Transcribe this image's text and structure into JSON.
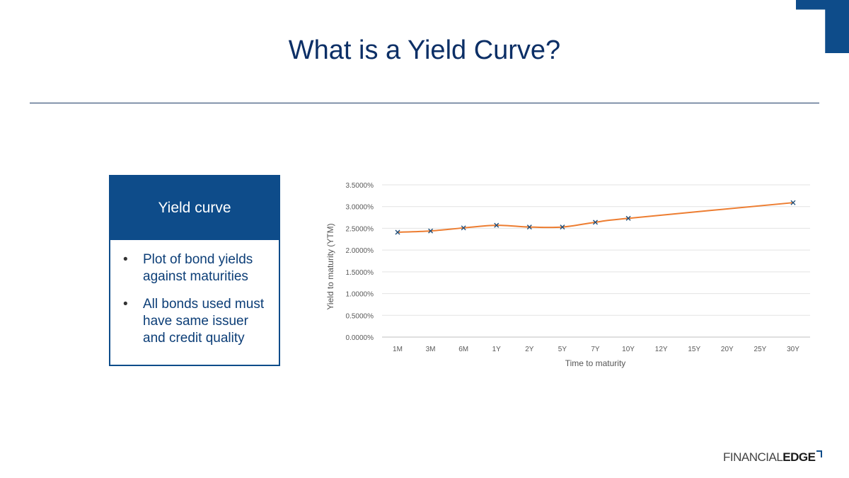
{
  "page": {
    "title": "What is a Yield Curve?"
  },
  "card": {
    "header": "Yield curve",
    "bullets": [
      "Plot of bond yields against maturities",
      "All bonds used must have same issuer and credit quality"
    ]
  },
  "logo": {
    "part1": "FINANCIAL",
    "part2": "EDGE"
  },
  "colors": {
    "accent": "#0e4c8a",
    "line": "#ed7d31",
    "marker": "#1f4e79"
  },
  "chart_data": {
    "type": "line",
    "title": "",
    "xlabel": "Time to maturity",
    "ylabel": "Yield to maturity (YTM)",
    "categories": [
      "1M",
      "3M",
      "6M",
      "1Y",
      "2Y",
      "5Y",
      "7Y",
      "10Y",
      "12Y",
      "15Y",
      "20Y",
      "25Y",
      "30Y"
    ],
    "values": [
      2.41,
      2.44,
      2.51,
      2.57,
      2.53,
      2.53,
      2.64,
      2.73,
      null,
      null,
      null,
      null,
      3.09
    ],
    "y_ticks": [
      "0.0000%",
      "0.5000%",
      "1.0000%",
      "1.5000%",
      "2.0000%",
      "2.5000%",
      "3.0000%",
      "3.5000%"
    ],
    "ylim": [
      0,
      3.5
    ],
    "grid": true,
    "legend": "none"
  }
}
